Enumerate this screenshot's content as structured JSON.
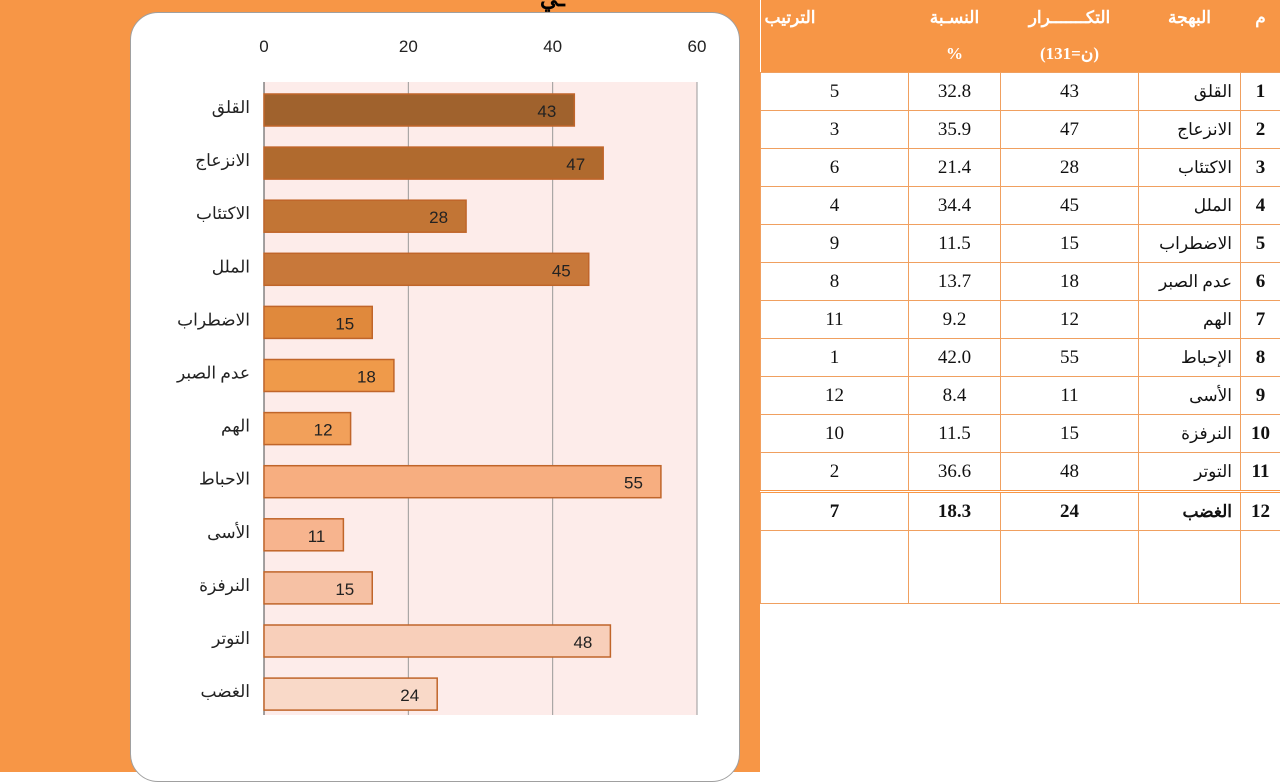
{
  "title_fragment": "ـي",
  "table": {
    "headers": {
      "idx": "م",
      "emotion": "البهجة",
      "freq_line1": "التكـــــــرار",
      "freq_line2": "(ن=131)",
      "pct_line1": "النسـبة",
      "pct_line2": "%",
      "rank": "الترتيب"
    },
    "rows": [
      {
        "idx": "1",
        "emotion": "القلق",
        "freq": "43",
        "pct": "32.8",
        "rank": "5"
      },
      {
        "idx": "2",
        "emotion": "الانزعاج",
        "freq": "47",
        "pct": "35.9",
        "rank": "3"
      },
      {
        "idx": "3",
        "emotion": "الاكتئاب",
        "freq": "28",
        "pct": "21.4",
        "rank": "6"
      },
      {
        "idx": "4",
        "emotion": "الملل",
        "freq": "45",
        "pct": "34.4",
        "rank": "4"
      },
      {
        "idx": "5",
        "emotion": "الاضطراب",
        "freq": "15",
        "pct": "11.5",
        "rank": "9"
      },
      {
        "idx": "6",
        "emotion": "عدم الصبر",
        "freq": "18",
        "pct": "13.7",
        "rank": "8"
      },
      {
        "idx": "7",
        "emotion": "الهم",
        "freq": "12",
        "pct": "9.2",
        "rank": "11"
      },
      {
        "idx": "8",
        "emotion": "الإحباط",
        "freq": "55",
        "pct": "42.0",
        "rank": "1"
      },
      {
        "idx": "9",
        "emotion": "الأسى",
        "freq": "11",
        "pct": "8.4",
        "rank": "12"
      },
      {
        "idx": "10",
        "emotion": "النرفزة",
        "freq": "15",
        "pct": "11.5",
        "rank": "10"
      },
      {
        "idx": "11",
        "emotion": "التوتر",
        "freq": "48",
        "pct": "36.6",
        "rank": "2"
      },
      {
        "idx": "12",
        "emotion": "الغضب",
        "freq": "24",
        "pct": "18.3",
        "rank": "7"
      }
    ]
  },
  "chart_data": {
    "type": "bar",
    "orientation": "horizontal",
    "categories": [
      "القلق",
      "الانزعاج",
      "الاكتئاب",
      "الملل",
      "الاضطراب",
      "عدم الصبر",
      "الهم",
      "الاحباط",
      "الأسى",
      "النرفزة",
      "التوتر",
      "الغضب"
    ],
    "values": [
      43,
      47,
      28,
      45,
      15,
      18,
      12,
      55,
      11,
      15,
      48,
      24
    ],
    "xlim": [
      0,
      60
    ],
    "xticks": [
      "0",
      "20",
      "40",
      "60"
    ],
    "x_axis_position": "top",
    "grid": "vertical",
    "title": "",
    "xlabel": "",
    "ylabel": "",
    "colors": [
      "#a0622d",
      "#b06a2e",
      "#c27535",
      "#c8783a",
      "#e0893c",
      "#ef9a4a",
      "#f2a05a",
      "#f7ae80",
      "#f7b48e",
      "#f6c1a4",
      "#f8cfba",
      "#f9d9c8"
    ],
    "plot_background": "#fdecea",
    "bar_border": "#c0652a"
  }
}
